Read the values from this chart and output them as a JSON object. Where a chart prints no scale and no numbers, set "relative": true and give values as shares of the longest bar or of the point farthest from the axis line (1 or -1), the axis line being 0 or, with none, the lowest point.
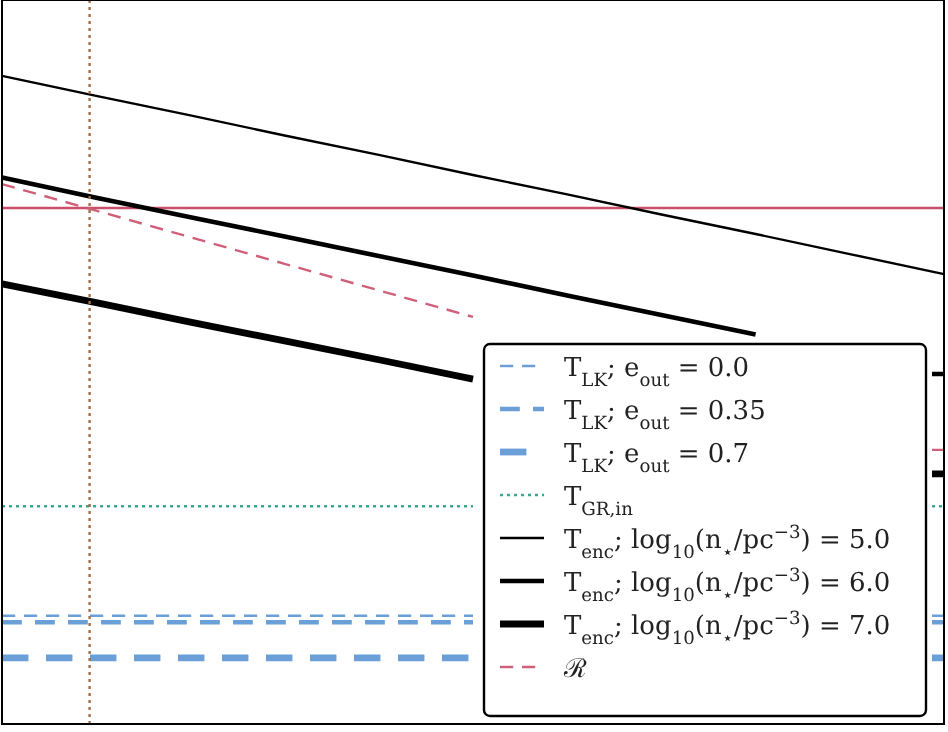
{
  "chart_data": {
    "type": "line",
    "relative": true,
    "categories": [
      null,
      null,
      null,
      null,
      null,
      null,
      null,
      null,
      null,
      null,
      null
    ],
    "grid": false,
    "legend": "bottom right",
    "marker": "none",
    "series": [
      {
        "name": "T$_{LK}$; e$_{out}$ = 0.0",
        "color": "#6a9fd8",
        "line_style": "dashed",
        "values": [
          0.167,
          0.167,
          0.167,
          0.167,
          0.167,
          0.167,
          null,
          null,
          null,
          null,
          0.167
        ]
      },
      {
        "name": "T$_{LK}$; e$_{out}$ = 0.35",
        "color": "#6a9fd8",
        "line_style": "dashed",
        "values": [
          0.157,
          0.157,
          0.157,
          0.157,
          0.157,
          0.157,
          null,
          null,
          null,
          null,
          0.157
        ]
      },
      {
        "name": "T$_{LK}$; e$_{out}$ = 0.7",
        "color": "#6a9fd8",
        "line_style": "dashed",
        "values": [
          0.102,
          0.102,
          0.102,
          0.102,
          0.102,
          0.102,
          null,
          null,
          null,
          null,
          0.102
        ]
      },
      {
        "name": "T$_{GR,in}$",
        "color": "#3aa88c",
        "line_style": "dotted",
        "values": [
          0.336,
          0.336,
          0.336,
          0.336,
          0.336,
          0.336,
          null,
          null,
          null,
          null,
          0.336
        ]
      },
      {
        "name": "T$_{enc}$; log$_{10}$(n$_{⋆}$/pc$^{−3}$) = 5.0",
        "color": "#000000",
        "line_style": "solid",
        "values": [
          1,
          0.969,
          0.939,
          0.908,
          0.878,
          0.847,
          0.817,
          0.786,
          0.756,
          0.725,
          0.694
        ]
      },
      {
        "name": "T$_{enc}$; log$_{10}$(n$_{⋆}$/pc$^{−3}$) = 6.0",
        "color": "#000000",
        "line_style": "solid",
        "values": [
          0.843,
          0.812,
          0.782,
          0.752,
          0.722,
          0.692,
          0.661,
          0.631,
          0.601,
          null,
          0.54
        ]
      },
      {
        "name": "T$_{enc}$; log$_{10}$(n$_{⋆}$/pc$^{−3}$) = 7.0",
        "color": "#000000",
        "line_style": "solid",
        "values": [
          0.679,
          0.65,
          0.62,
          0.591,
          0.562,
          0.532,
          null,
          null,
          null,
          null,
          0.386
        ]
      },
      {
        "name": "ℛ",
        "color": "#d0607a",
        "line_style": "dashed",
        "values": [
          0.833,
          0.792,
          0.751,
          0.71,
          0.669,
          0.628,
          null,
          null,
          null,
          null,
          0.423
        ]
      }
    ],
    "ref_lines": [
      {
        "axis": "y",
        "value": 0.796,
        "color": "#c8506a",
        "line_style": "solid"
      }
    ]
  }
}
